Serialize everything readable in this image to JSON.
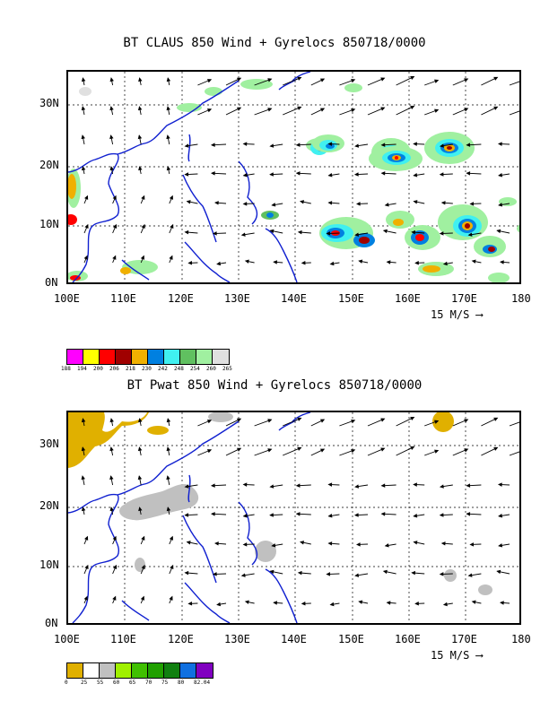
{
  "panel1": {
    "title": "BT CLAUS 850 Wind + Gyrelocs 850718/0000",
    "lat_labels": [
      "30N",
      "20N",
      "10N",
      "0N"
    ],
    "lon_labels": [
      "100E",
      "110E",
      "120E",
      "130E",
      "140E",
      "150E",
      "160E",
      "170E",
      "180"
    ],
    "vector_ref": "15 M/S",
    "scale_colors": [
      "#ff00ff",
      "#ffff00",
      "#ff0000",
      "#a00000",
      "#f0b000",
      "#0080e0",
      "#40f0f0",
      "#60c060",
      "#a0f0a0",
      "#e0e0e0"
    ],
    "scale_ticks": [
      "188",
      "194",
      "200",
      "206",
      "218",
      "230",
      "242",
      "248",
      "254",
      "260",
      "265"
    ]
  },
  "panel2": {
    "title": "BT Pwat 850 Wind + Gyrelocs 850718/0000",
    "lat_labels": [
      "30N",
      "20N",
      "10N",
      "0N"
    ],
    "lon_labels": [
      "100E",
      "110E",
      "120E",
      "130E",
      "140E",
      "150E",
      "160E",
      "170E",
      "180"
    ],
    "vector_ref": "15 M/S",
    "scale_colors": [
      "#e0b000",
      "#ffffff",
      "#c0c0c0",
      "#a0f000",
      "#40c000",
      "#20a000",
      "#108010",
      "#1070e0",
      "#8000c0"
    ],
    "scale_ticks": [
      "0",
      "25",
      "55",
      "60",
      "65",
      "70",
      "75",
      "80",
      "82.04"
    ]
  }
}
